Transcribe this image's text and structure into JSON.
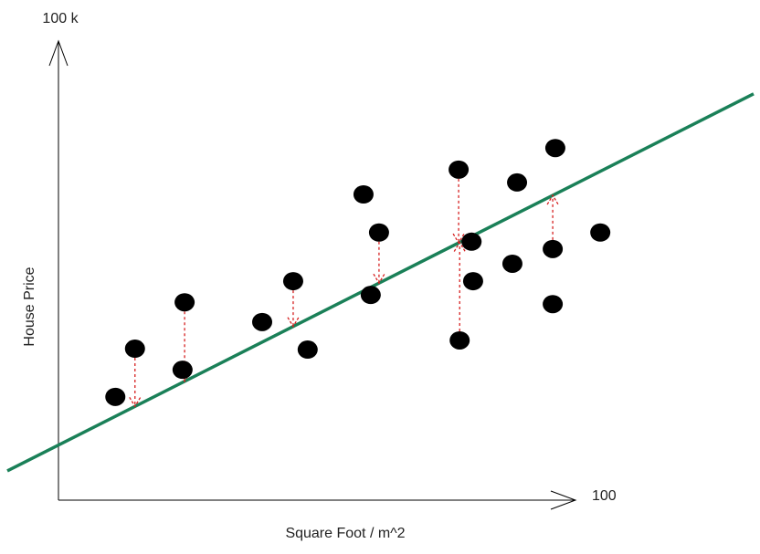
{
  "chart_data": {
    "type": "scatter",
    "xlabel": "Square Foot / m^2",
    "ylabel": "House Price",
    "x": [
      11.0,
      14.8,
      24.0,
      24.4,
      39.4,
      45.4,
      48.2,
      59.0,
      62.0,
      60.4,
      77.4,
      79.9,
      80.2,
      77.6,
      88.7,
      87.8,
      96.1,
      95.6,
      95.6,
      104.8
    ],
    "y": [
      22.5,
      33.0,
      28.4,
      43.1,
      38.8,
      47.7,
      32.8,
      66.6,
      58.3,
      44.7,
      72.0,
      56.3,
      47.7,
      34.8,
      69.2,
      51.5,
      76.7,
      54.7,
      42.7,
      58.3
    ],
    "color": "#000000",
    "trend_line": {
      "slope": 0.569,
      "intercept": 12.0,
      "color": "#1a8058"
    },
    "residual_points": [
      1,
      3,
      5,
      8,
      10,
      13,
      17
    ],
    "residual_color": "#d62020",
    "xlim": [
      0,
      100
    ],
    "ylim": [
      0,
      100
    ],
    "xticks": [
      {
        "value": 100,
        "label": "100"
      }
    ],
    "yticks": [
      {
        "value": 100,
        "label": "100 k"
      }
    ],
    "grid": false
  }
}
